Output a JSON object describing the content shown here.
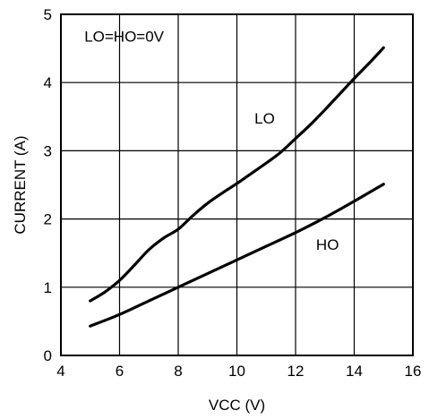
{
  "chart_data": {
    "type": "line",
    "xlabel": "VCC (V)",
    "ylabel": "CURRENT (A)",
    "xlim": [
      4,
      16
    ],
    "ylim": [
      0,
      5
    ],
    "xticks": [
      4,
      6,
      8,
      10,
      12,
      14,
      16
    ],
    "yticks": [
      0,
      1,
      2,
      3,
      4,
      5
    ],
    "grid": true,
    "annotations": [
      {
        "text": "LO=HO=0V",
        "x": 4.8,
        "y": 4.6
      },
      {
        "text": "LO",
        "x": 10.6,
        "y": 3.4
      },
      {
        "text": "HO",
        "x": 12.7,
        "y": 1.55
      }
    ],
    "series": [
      {
        "name": "LO",
        "x": [
          5,
          5.5,
          6,
          6.5,
          7,
          7.5,
          8,
          8.5,
          9,
          9.5,
          10,
          10.5,
          11,
          11.5,
          12,
          12.5,
          13,
          13.5,
          14,
          14.5,
          15
        ],
        "y": [
          0.8,
          0.93,
          1.1,
          1.32,
          1.55,
          1.72,
          1.85,
          2.05,
          2.23,
          2.38,
          2.52,
          2.67,
          2.82,
          2.98,
          3.18,
          3.38,
          3.6,
          3.83,
          4.06,
          4.28,
          4.51
        ]
      },
      {
        "name": "HO",
        "x": [
          5,
          6,
          7,
          8,
          9,
          10,
          11,
          12,
          13,
          14,
          15
        ],
        "y": [
          0.43,
          0.6,
          0.8,
          1.0,
          1.2,
          1.4,
          1.6,
          1.8,
          2.02,
          2.26,
          2.51
        ]
      }
    ]
  }
}
